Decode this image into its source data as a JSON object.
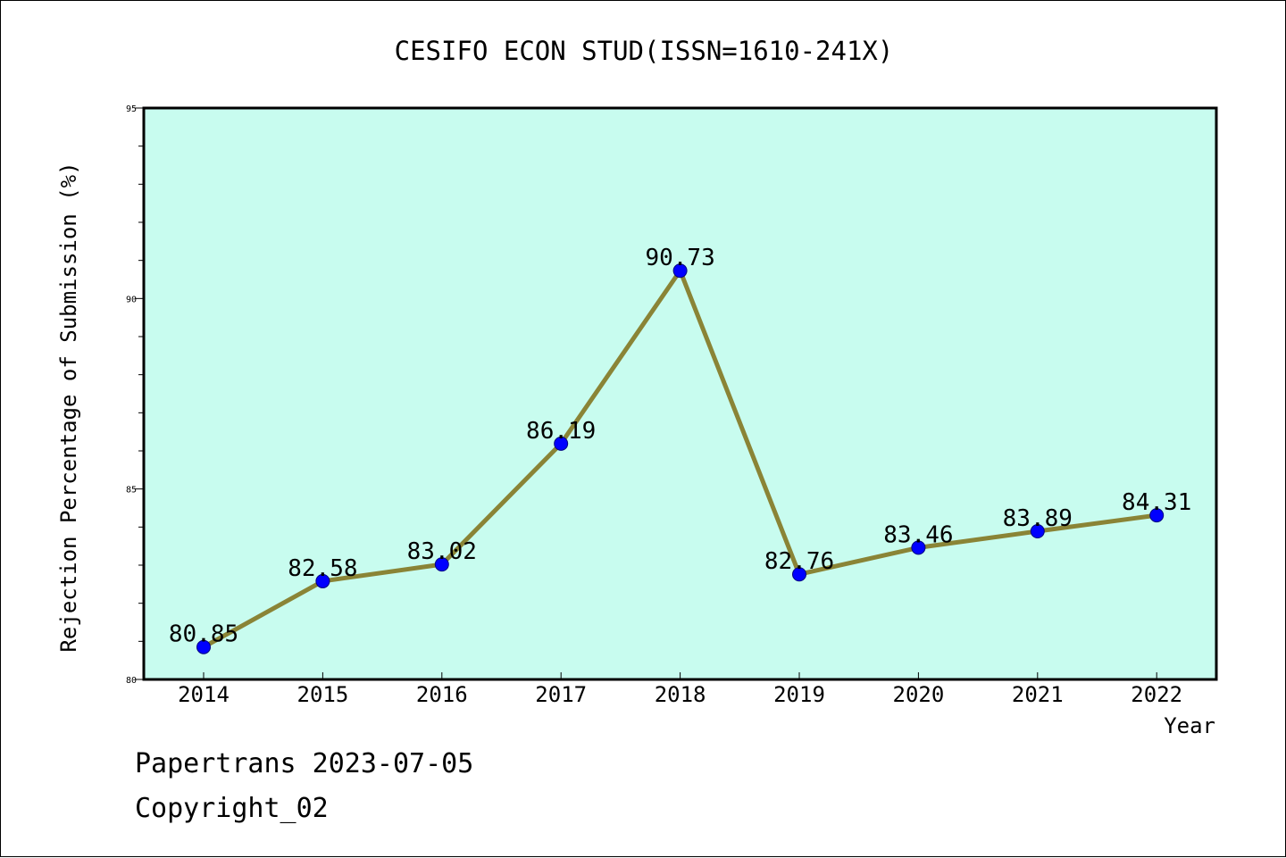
{
  "chart_data": {
    "type": "line",
    "title": "CESIFO ECON STUD(ISSN=1610-241X)",
    "xlabel": "Year",
    "ylabel": "Rejection Percentage of Submission (%)",
    "x": [
      "2014",
      "2015",
      "2016",
      "2017",
      "2018",
      "2019",
      "2020",
      "2021",
      "2022"
    ],
    "series": [
      {
        "values": [
          80.85,
          82.58,
          83.02,
          86.19,
          90.73,
          82.76,
          83.46,
          83.89,
          84.31
        ]
      }
    ],
    "data_labels": [
      "80.85",
      "82.58",
      "83.02",
      "86.19",
      "90.73",
      "82.76",
      "83.46",
      "83.89",
      "84.31"
    ],
    "ylim": [
      80,
      95
    ],
    "y_ticks": [
      80,
      85,
      90,
      95
    ],
    "y_minor_step": 1,
    "grid": false,
    "legend": "none"
  },
  "colors": {
    "plot_background": "#c8fcef",
    "line": "#8a8436",
    "marker": "#0000ff",
    "axis": "#000000"
  },
  "footer": {
    "line1": "Papertrans 2023-07-05",
    "line2": "Copyright_02"
  }
}
